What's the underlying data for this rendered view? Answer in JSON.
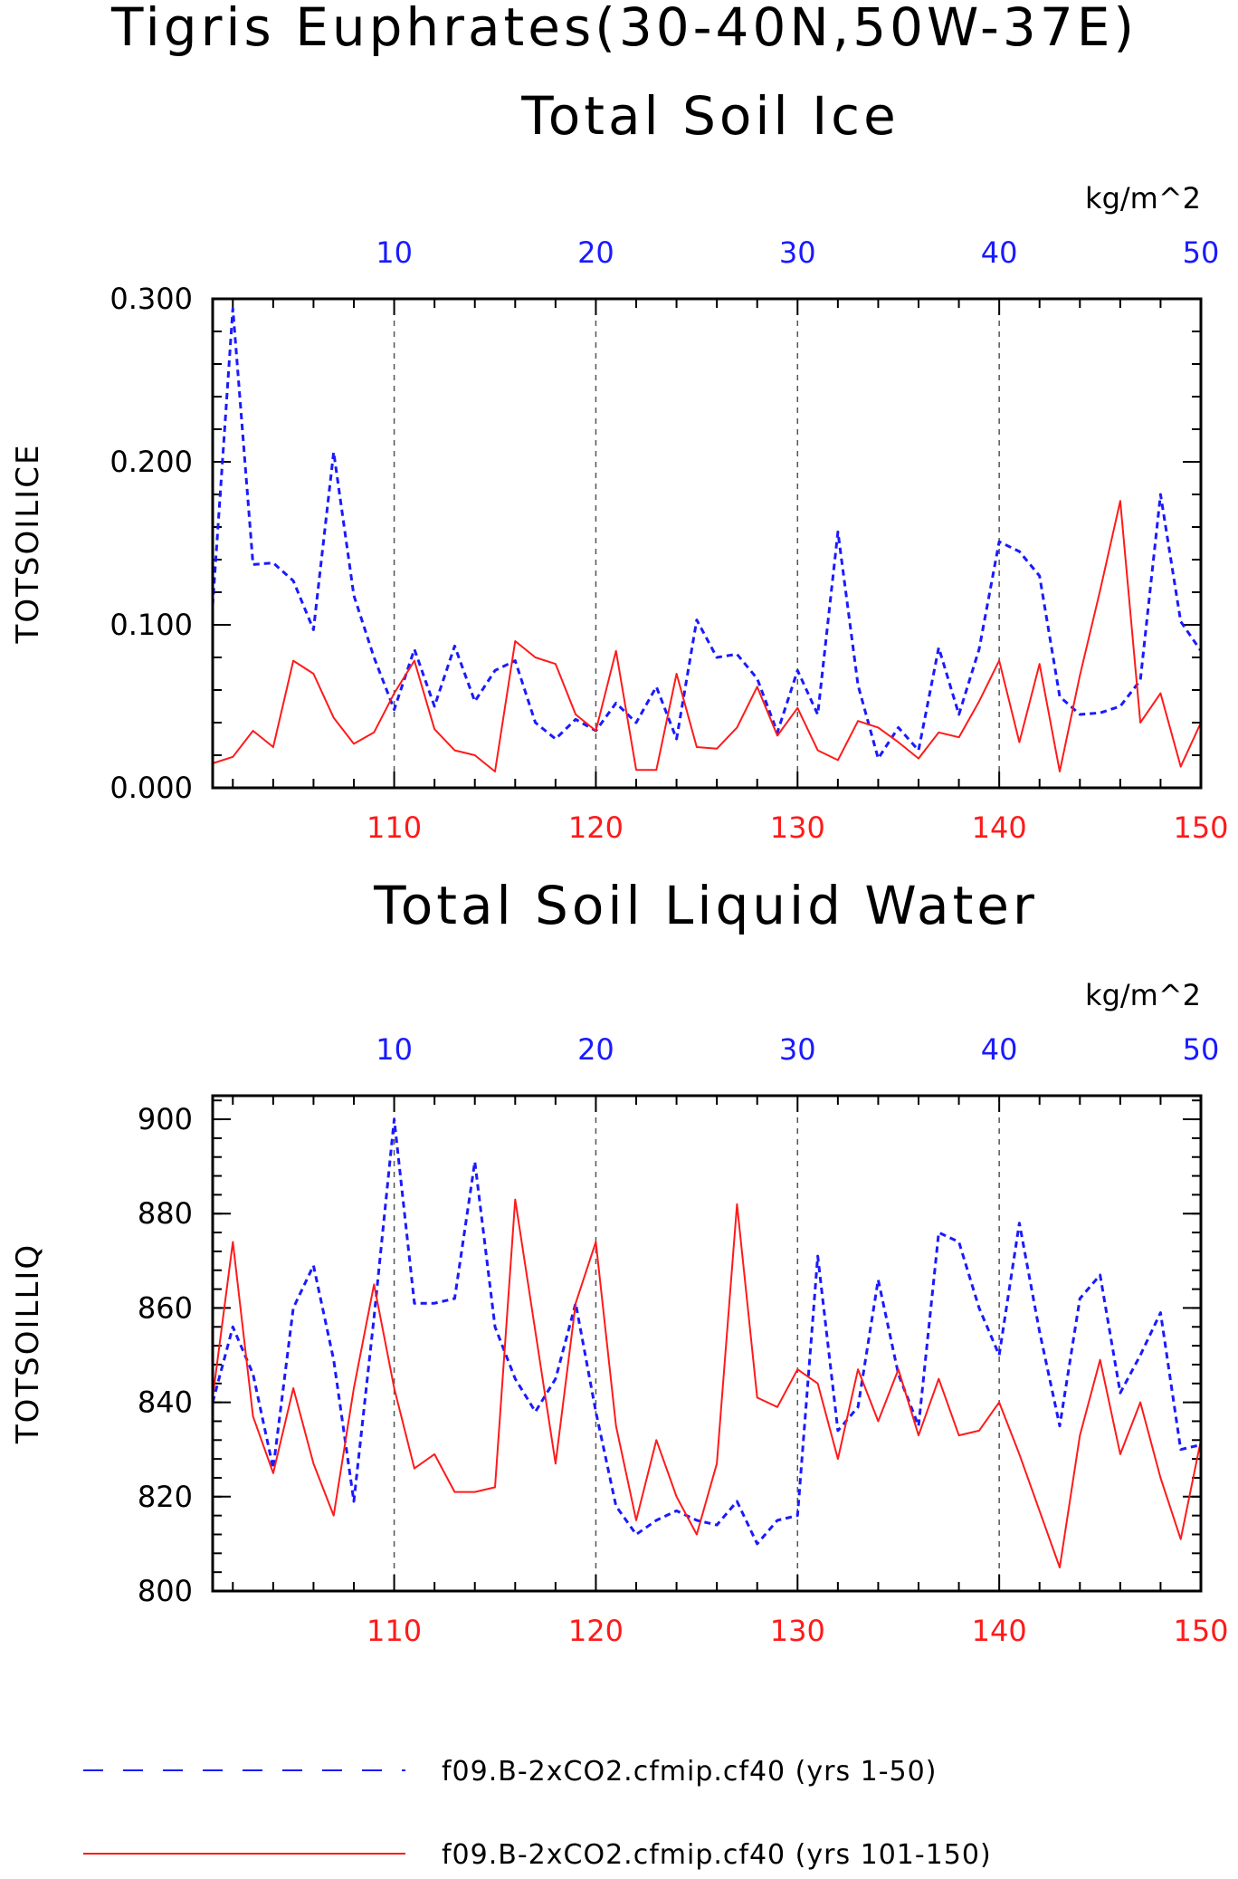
{
  "header": {
    "title_line1": "Tigris Euphrates(30-40N,50W-37E)"
  },
  "colors": {
    "blue": "#1a1aff",
    "red": "#ff1a1a",
    "axis": "#000000",
    "grid": "#555555"
  },
  "legend": [
    {
      "label": "f09.B-2xCO2.cfmip.cf40 (yrs 1-50)",
      "color": "#1a1aff",
      "style": "dashed"
    },
    {
      "label": "f09.B-2xCO2.cfmip.cf40 (yrs 101-150)",
      "color": "#ff1a1a",
      "style": "solid"
    }
  ],
  "chart_data": [
    {
      "type": "line",
      "title": "Total Soil Ice",
      "units": "kg/m^2",
      "ylabel": "TOTSOILICE",
      "ylim": [
        0,
        0.3
      ],
      "yticks": [
        "0.000",
        "0.100",
        "0.200",
        "0.300"
      ],
      "ytick_values": [
        0,
        0.1,
        0.2,
        0.3
      ],
      "top_axis": {
        "range": [
          1,
          50
        ],
        "ticks": [
          "10",
          "20",
          "30",
          "40",
          "50"
        ],
        "tick_values": [
          10,
          20,
          30,
          40,
          50
        ]
      },
      "bottom_axis": {
        "range": [
          101,
          150
        ],
        "ticks": [
          "110",
          "120",
          "130",
          "140",
          "150"
        ],
        "tick_values": [
          110,
          120,
          130,
          140,
          150
        ]
      },
      "grid": "dashed vertical at major x ticks",
      "series": [
        {
          "name": "f09.B-2xCO2.cfmip.cf40 (yrs 1-50)",
          "axis": "top",
          "x": [
            1,
            2,
            3,
            4,
            5,
            6,
            7,
            8,
            9,
            10,
            11,
            12,
            13,
            14,
            15,
            16,
            17,
            18,
            19,
            20,
            21,
            22,
            23,
            24,
            25,
            26,
            27,
            28,
            29,
            30,
            31,
            32,
            33,
            34,
            35,
            36,
            37,
            38,
            39,
            40,
            41,
            42,
            43,
            44,
            45,
            46,
            47,
            48,
            49,
            50
          ],
          "values": [
            0.112,
            0.294,
            0.137,
            0.138,
            0.127,
            0.097,
            0.206,
            0.118,
            0.08,
            0.048,
            0.085,
            0.05,
            0.087,
            0.053,
            0.072,
            0.078,
            0.04,
            0.03,
            0.042,
            0.035,
            0.052,
            0.04,
            0.062,
            0.03,
            0.103,
            0.08,
            0.082,
            0.067,
            0.034,
            0.072,
            0.045,
            0.157,
            0.063,
            0.018,
            0.037,
            0.023,
            0.086,
            0.045,
            0.085,
            0.151,
            0.145,
            0.13,
            0.056,
            0.045,
            0.046,
            0.05,
            0.066,
            0.18,
            0.102,
            0.084
          ]
        },
        {
          "name": "f09.B-2xCO2.cfmip.cf40 (yrs 101-150)",
          "axis": "bottom",
          "x": [
            101,
            102,
            103,
            104,
            105,
            106,
            107,
            108,
            109,
            110,
            111,
            112,
            113,
            114,
            115,
            116,
            117,
            118,
            119,
            120,
            121,
            122,
            123,
            124,
            125,
            126,
            127,
            128,
            129,
            130,
            131,
            132,
            133,
            134,
            135,
            136,
            137,
            138,
            139,
            140,
            141,
            142,
            143,
            144,
            145,
            146,
            147,
            148,
            149,
            150
          ],
          "values": [
            0.015,
            0.019,
            0.035,
            0.025,
            0.078,
            0.07,
            0.043,
            0.027,
            0.034,
            0.058,
            0.078,
            0.036,
            0.023,
            0.02,
            0.01,
            0.09,
            0.08,
            0.076,
            0.045,
            0.035,
            0.084,
            0.011,
            0.011,
            0.07,
            0.025,
            0.024,
            0.037,
            0.062,
            0.032,
            0.049,
            0.023,
            0.017,
            0.041,
            0.037,
            0.028,
            0.018,
            0.034,
            0.031,
            0.053,
            0.078,
            0.028,
            0.076,
            0.01,
            0.069,
            0.121,
            0.176,
            0.04,
            0.058,
            0.013,
            0.04
          ]
        }
      ]
    },
    {
      "type": "line",
      "title": "Total Soil Liquid Water",
      "units": "kg/m^2",
      "ylabel": "TOTSOILLIQ",
      "ylim": [
        800,
        905
      ],
      "yticks": [
        "800",
        "820",
        "840",
        "860",
        "880",
        "900"
      ],
      "ytick_values": [
        800,
        820,
        840,
        860,
        880,
        900
      ],
      "top_axis": {
        "range": [
          1,
          50
        ],
        "ticks": [
          "10",
          "20",
          "30",
          "40",
          "50"
        ],
        "tick_values": [
          10,
          20,
          30,
          40,
          50
        ]
      },
      "bottom_axis": {
        "range": [
          101,
          150
        ],
        "ticks": [
          "110",
          "120",
          "130",
          "140",
          "150"
        ],
        "tick_values": [
          110,
          120,
          130,
          140,
          150
        ]
      },
      "grid": "dashed vertical at major x ticks",
      "series": [
        {
          "name": "f09.B-2xCO2.cfmip.cf40 (yrs 1-50)",
          "axis": "top",
          "x": [
            1,
            2,
            3,
            4,
            5,
            6,
            7,
            8,
            9,
            10,
            11,
            12,
            13,
            14,
            15,
            16,
            17,
            18,
            19,
            20,
            21,
            22,
            23,
            24,
            25,
            26,
            27,
            28,
            29,
            30,
            31,
            32,
            33,
            34,
            35,
            36,
            37,
            38,
            39,
            40,
            41,
            42,
            43,
            44,
            45,
            46,
            47,
            48,
            49,
            50
          ],
          "values": [
            840,
            856,
            846,
            826,
            860,
            869,
            849,
            819,
            858,
            900,
            861,
            861,
            862,
            891,
            856,
            845,
            838,
            845,
            861,
            838,
            818,
            812,
            815,
            817,
            815,
            814,
            819,
            810,
            815,
            816,
            871,
            834,
            839,
            866,
            846,
            835,
            876,
            874,
            860,
            850,
            878,
            855,
            835,
            862,
            867,
            842,
            850,
            859,
            830,
            831
          ]
        },
        {
          "name": "f09.B-2xCO2.cfmip.cf40 (yrs 101-150)",
          "axis": "bottom",
          "x": [
            101,
            102,
            103,
            104,
            105,
            106,
            107,
            108,
            109,
            110,
            111,
            112,
            113,
            114,
            115,
            116,
            117,
            118,
            119,
            120,
            121,
            122,
            123,
            124,
            125,
            126,
            127,
            128,
            129,
            130,
            131,
            132,
            133,
            134,
            135,
            136,
            137,
            138,
            139,
            140,
            141,
            142,
            143,
            144,
            145,
            146,
            147,
            148,
            149,
            150
          ],
          "values": [
            841,
            874,
            837,
            825,
            843,
            827,
            816,
            843,
            865,
            843,
            826,
            829,
            821,
            821,
            822,
            883,
            855,
            827,
            861,
            874,
            835,
            815,
            832,
            820,
            812,
            827,
            882,
            841,
            839,
            847,
            844,
            828,
            847,
            836,
            847,
            833,
            845,
            833,
            834,
            840,
            829,
            817,
            805,
            833,
            849,
            829,
            840,
            824,
            811,
            832
          ]
        }
      ]
    }
  ]
}
